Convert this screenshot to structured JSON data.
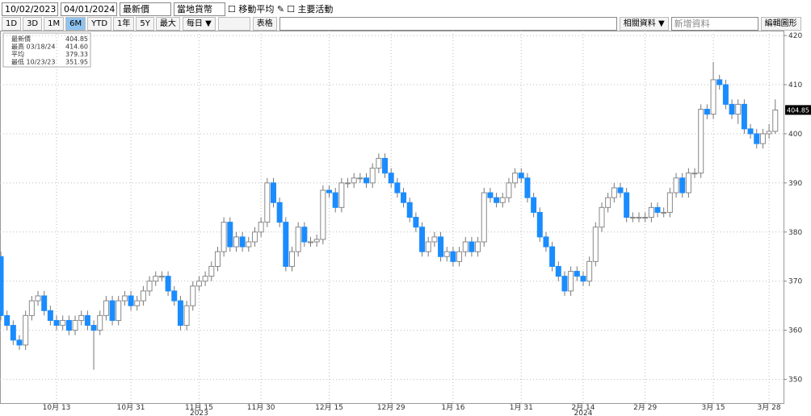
{
  "toolbar": {
    "start_date": "10/02/2023",
    "end_date": "04/01/2024",
    "field": "最新價",
    "currency": "當地貨幣",
    "check_ma": "移動平均",
    "check_events": "主要活動",
    "periods": [
      "1D",
      "3D",
      "1M",
      "6M",
      "YTD",
      "1年",
      "5Y",
      "最大"
    ],
    "frequency": "每日 ▼",
    "table": "表格",
    "related": "相關資料 ▼",
    "add_data": "新增資料",
    "edit_chart": "編輯圖形"
  },
  "chart_data": {
    "type": "candlestick",
    "summary": [
      {
        "label": "最新價",
        "value": "404.85"
      },
      {
        "label": "最高 03/18/24",
        "value": "414.60"
      },
      {
        "label": "平均",
        "value": "379.33"
      },
      {
        "label": "最低 10/23/23",
        "value": "351.95"
      }
    ],
    "up_color": "#ffffff",
    "down_color": "#1a8cff",
    "categories": [
      null,
      null,
      null,
      null,
      null,
      null,
      null,
      null,
      null,
      "10月 13",
      null,
      null,
      null,
      null,
      null,
      null,
      null,
      null,
      null,
      null,
      null,
      "10月 31",
      null,
      null,
      null,
      null,
      null,
      null,
      null,
      null,
      null,
      null,
      "11月 15",
      null,
      null,
      null,
      null,
      null,
      null,
      null,
      null,
      null,
      "11月 30",
      null,
      null,
      null,
      null,
      null,
      null,
      null,
      null,
      null,
      null,
      "12月 15",
      null,
      null,
      null,
      null,
      null,
      null,
      null,
      null,
      null,
      "12月 29",
      null,
      null,
      null,
      null,
      null,
      null,
      null,
      null,
      null,
      "1月 16",
      null,
      null,
      null,
      null,
      null,
      null,
      null,
      null,
      null,
      null,
      "1月 31",
      null,
      null,
      null,
      null,
      null,
      null,
      null,
      null,
      null,
      "2月 14",
      null,
      null,
      null,
      null,
      null,
      null,
      null,
      null,
      null,
      "2月 29",
      null,
      null,
      null,
      null,
      null,
      null,
      null,
      null,
      null,
      null,
      "3月 15",
      null,
      null,
      null,
      null,
      null,
      null,
      null,
      null,
      "3月 28",
      null
    ],
    "year_labels": [
      "2023",
      "2024"
    ],
    "open": [
      375,
      363,
      361,
      358,
      357,
      363,
      366,
      367,
      364,
      362,
      361,
      362,
      360,
      362,
      363,
      361,
      360,
      363,
      366,
      362,
      366,
      367,
      365,
      366,
      368,
      370,
      371,
      371,
      368,
      366,
      361,
      365,
      369,
      370,
      371,
      373,
      376,
      382,
      377,
      379,
      377,
      378,
      380,
      382,
      390,
      386,
      382,
      373,
      376,
      381,
      378,
      378,
      378.5,
      388.5,
      388,
      385,
      390,
      390,
      391,
      391,
      390,
      393,
      395,
      392,
      390,
      388,
      386,
      383,
      381,
      376,
      378,
      379,
      375,
      376,
      374,
      376,
      378,
      376,
      378,
      388,
      387,
      386,
      387,
      390,
      392,
      391,
      387,
      384,
      379,
      377,
      373,
      371,
      368,
      372,
      371,
      370,
      374,
      381,
      385,
      387,
      389,
      388,
      383,
      383,
      383,
      383,
      385,
      384,
      384,
      388,
      391,
      388,
      392,
      392,
      405,
      404,
      411,
      410,
      406,
      404,
      406,
      401,
      400,
      398,
      400,
      400.5
    ],
    "high": [
      376,
      364,
      362,
      359,
      364,
      367,
      368,
      368,
      365,
      363,
      363,
      363,
      363,
      364,
      364,
      362,
      364,
      367,
      367,
      367,
      368,
      368,
      367,
      369,
      371,
      372,
      372,
      372,
      369,
      367,
      366,
      370,
      371,
      372,
      374,
      377,
      383,
      383,
      380,
      380,
      379,
      381,
      383,
      391,
      391,
      387,
      383,
      377,
      382,
      382,
      379,
      379.5,
      389.5,
      389.5,
      389,
      391,
      391,
      392,
      392,
      392,
      394,
      396,
      396,
      393,
      391,
      389,
      387,
      384,
      382,
      379,
      380,
      380,
      377,
      377,
      377,
      379,
      379,
      379,
      389,
      389,
      388,
      388,
      391,
      393,
      393,
      392,
      388,
      385,
      380,
      378,
      374,
      372,
      373,
      373,
      372,
      375,
      382,
      386,
      388,
      390,
      390,
      389,
      384,
      384,
      384,
      386,
      386,
      385,
      389,
      392,
      392,
      393,
      393,
      406,
      406,
      414.6,
      412,
      411,
      407,
      407,
      407,
      402,
      401,
      401,
      402,
      407
    ],
    "low": [
      362,
      360,
      357,
      356,
      356,
      362,
      365,
      363,
      361,
      360,
      360,
      359,
      359,
      361,
      360,
      351.95,
      359,
      362,
      361,
      361,
      365,
      364,
      364,
      365,
      367,
      369,
      370,
      367,
      365,
      360,
      360,
      364,
      368,
      369,
      370,
      372,
      375,
      376,
      376,
      376,
      376,
      377,
      379,
      381,
      385,
      381,
      372,
      372,
      375,
      377,
      377,
      377,
      377.5,
      387,
      384,
      384,
      389,
      389,
      390,
      389,
      389,
      392,
      391,
      389,
      387,
      385,
      382,
      380,
      375,
      375,
      377,
      374,
      374,
      373,
      373,
      375,
      375,
      375,
      377,
      386,
      385,
      385,
      386,
      389,
      390,
      386,
      383,
      378,
      376,
      372,
      370,
      367,
      367,
      370,
      369,
      369,
      373,
      380,
      384,
      386,
      387,
      382,
      382,
      382,
      382,
      382,
      383,
      383,
      383,
      387,
      387,
      387,
      391,
      391,
      403,
      403,
      409,
      405,
      403,
      402,
      400,
      399,
      397,
      397,
      399,
      400
    ],
    "close": [
      363,
      361,
      358,
      357,
      363,
      366,
      367,
      364,
      362,
      361,
      362,
      360,
      362,
      363,
      361,
      360,
      363,
      366,
      362,
      366,
      367,
      365,
      366,
      368,
      370,
      371,
      371,
      368,
      366,
      361,
      365,
      369,
      370,
      371,
      373,
      376,
      382,
      377,
      379,
      377,
      378,
      380,
      382,
      390,
      386,
      382,
      373,
      376,
      381,
      378,
      378,
      378.5,
      388.5,
      388,
      385,
      390,
      390,
      391,
      391,
      390,
      393,
      395,
      392,
      390,
      388,
      386,
      383,
      381,
      376,
      378,
      379,
      375,
      376,
      374,
      376,
      378,
      376,
      378,
      388,
      387,
      386,
      387,
      390,
      392,
      391,
      387,
      384,
      379,
      377,
      373,
      371,
      368,
      372,
      371,
      370,
      374,
      381,
      385,
      387,
      389,
      388,
      383,
      383,
      383,
      383,
      385,
      384,
      384,
      388,
      391,
      388,
      392,
      392,
      405,
      404,
      411,
      410,
      406,
      404,
      406,
      401,
      400,
      398,
      400,
      400.5,
      404.85
    ],
    "ylim": [
      345.5,
      421
    ],
    "yticks": [
      350,
      360,
      370,
      380,
      390,
      400,
      410,
      420
    ],
    "grid": true
  }
}
